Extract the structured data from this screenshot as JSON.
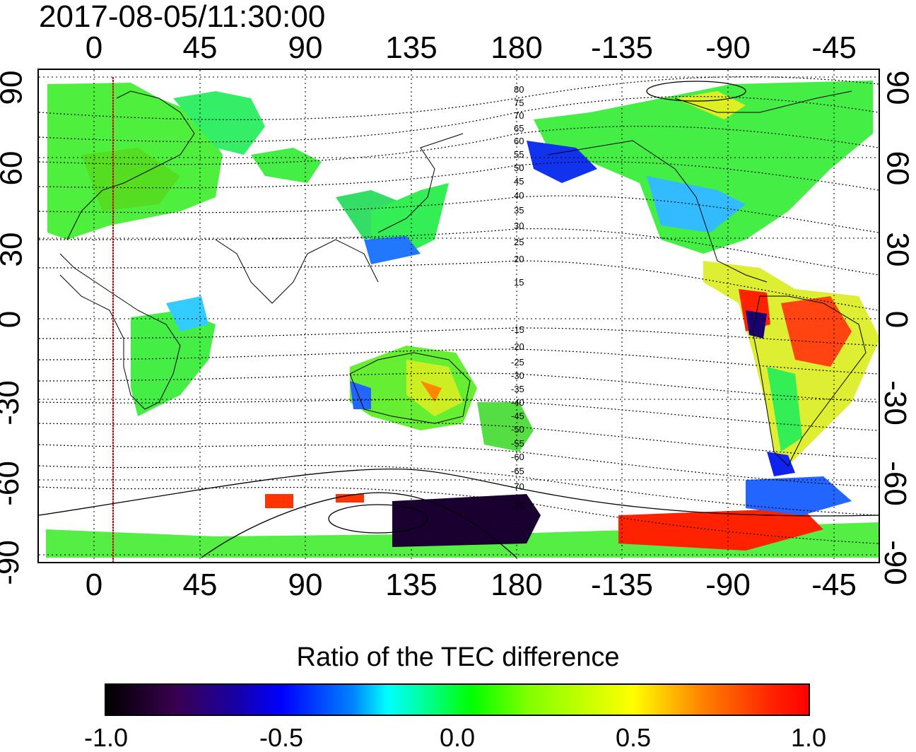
{
  "title": "2017-08-05/11:30:00",
  "top_axis_ticks": [
    "0",
    "45",
    "90",
    "135",
    "180",
    "-135",
    "-90",
    "-45"
  ],
  "bottom_axis_ticks": [
    "0",
    "45",
    "90",
    "135",
    "180",
    "-135",
    "-90",
    "-45"
  ],
  "left_axis_ticks": [
    "90",
    "60",
    "30",
    "0",
    "-30",
    "-60",
    "-90"
  ],
  "right_axis_ticks": [
    "90",
    "60",
    "30",
    "0",
    "-30",
    "-60",
    "-90"
  ],
  "contour_labels_north": [
    "80",
    "75",
    "70",
    "65",
    "60",
    "55",
    "50",
    "45",
    "40",
    "35",
    "30",
    "25",
    "20",
    "15"
  ],
  "contour_labels_south": [
    "-15",
    "-20",
    "-25",
    "-30",
    "-35",
    "-40",
    "-45",
    "-50",
    "-55",
    "-60",
    "-65",
    "-70",
    "-75"
  ],
  "colorbar": {
    "label": "Ratio of the TEC difference",
    "ticks": [
      "-1.0",
      "-0.5",
      "0.0",
      "0.5",
      "1.0"
    ],
    "range": [
      -1.0,
      1.0
    ]
  },
  "colors": {
    "dominant_land_data": "#33ee44",
    "negative_anomaly": "#0033ff",
    "positive_anomaly": "#ff2200",
    "terminator_line": "#dd0000"
  }
}
